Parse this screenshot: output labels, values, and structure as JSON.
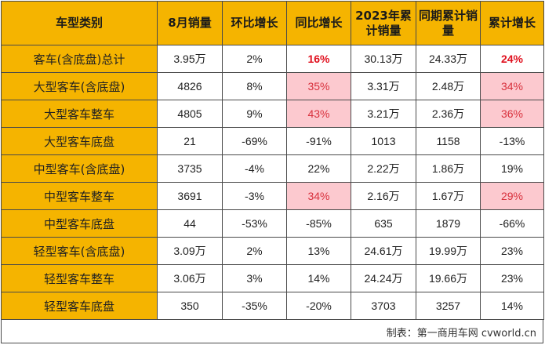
{
  "table": {
    "headers": [
      "车型类别",
      "8月销量",
      "环比增长",
      "同比增长",
      "2023年累计销量",
      "同期累计销量",
      "累计增长"
    ],
    "rows": [
      {
        "category": "客车(含底盘)总计",
        "aug_sales": "3.95万",
        "mom": "2%",
        "yoy": "16%",
        "ytd_2023": "30.13万",
        "ytd_prev": "24.33万",
        "cum_growth": "24%"
      },
      {
        "category": "大型客车(含底盘)",
        "aug_sales": "4826",
        "mom": "8%",
        "yoy": "35%",
        "ytd_2023": "3.31万",
        "ytd_prev": "2.48万",
        "cum_growth": "34%"
      },
      {
        "category": "大型客车整车",
        "aug_sales": "4805",
        "mom": "9%",
        "yoy": "43%",
        "ytd_2023": "3.21万",
        "ytd_prev": "2.36万",
        "cum_growth": "36%"
      },
      {
        "category": "大型客车底盘",
        "aug_sales": "21",
        "mom": "-69%",
        "yoy": "-91%",
        "ytd_2023": "1013",
        "ytd_prev": "1158",
        "cum_growth": "-13%"
      },
      {
        "category": "中型客车(含底盘)",
        "aug_sales": "3735",
        "mom": "-4%",
        "yoy": "22%",
        "ytd_2023": "2.22万",
        "ytd_prev": "1.86万",
        "cum_growth": "19%"
      },
      {
        "category": "中型客车整车",
        "aug_sales": "3691",
        "mom": "-3%",
        "yoy": "34%",
        "ytd_2023": "2.16万",
        "ytd_prev": "1.67万",
        "cum_growth": "29%"
      },
      {
        "category": "中型客车底盘",
        "aug_sales": "44",
        "mom": "-53%",
        "yoy": "-85%",
        "ytd_2023": "635",
        "ytd_prev": "1879",
        "cum_growth": "-66%"
      },
      {
        "category": "轻型客车(含底盘)",
        "aug_sales": "3.09万",
        "mom": "2%",
        "yoy": "13%",
        "ytd_2023": "24.61万",
        "ytd_prev": "19.99万",
        "cum_growth": "23%"
      },
      {
        "category": "轻型客车整车",
        "aug_sales": "3.06万",
        "mom": "3%",
        "yoy": "14%",
        "ytd_2023": "24.24万",
        "ytd_prev": "19.66万",
        "cum_growth": "23%"
      },
      {
        "category": "轻型客车底盘",
        "aug_sales": "350",
        "mom": "-35%",
        "yoy": "-20%",
        "ytd_2023": "3703",
        "ytd_prev": "3257",
        "cum_growth": "14%"
      }
    ]
  },
  "credit": "制表：第一商用车网 cvworld.cn",
  "colors": {
    "header_bg": "#f5b400",
    "highlight_bg": "#fcc9cf",
    "highlight_text": "#d8303c",
    "bold_red": "#e0101e"
  }
}
